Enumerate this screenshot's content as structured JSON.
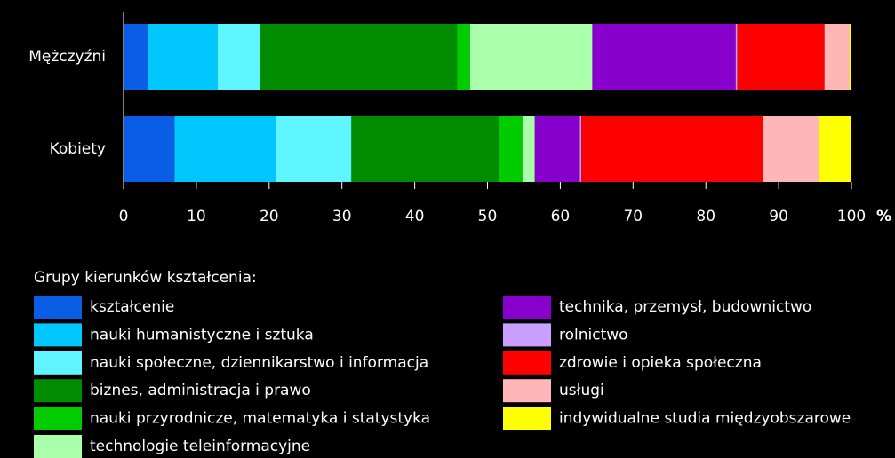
{
  "chart_data": {
    "type": "stacked_barh",
    "categories": [
      "Mężczyźni",
      "Kobiety"
    ],
    "xlabel": "%",
    "legend_title": "Grupy kierunków kształcenia:",
    "xlim": [
      0,
      100
    ],
    "xticks": [
      0,
      10,
      20,
      30,
      40,
      50,
      60,
      70,
      80,
      90,
      100
    ],
    "series": [
      {
        "name": "kształcenie",
        "color": "#0a5ee6",
        "values": [
          3.3,
          7.0
        ]
      },
      {
        "name": "nauki humanistyczne i sztuka",
        "color": "#00c8ff",
        "values": [
          9.6,
          13.9
        ]
      },
      {
        "name": "nauki społeczne, dziennikarstwo i informacja",
        "color": "#5ff5ff",
        "values": [
          5.9,
          10.4
        ]
      },
      {
        "name": "biznes, administracja i prawo",
        "color": "#008c00",
        "values": [
          27.0,
          20.3
        ]
      },
      {
        "name": "nauki przyrodnicze, matematyka i statystyka",
        "color": "#00cc00",
        "values": [
          1.8,
          3.2
        ]
      },
      {
        "name": "technologie teleinformacyjne",
        "color": "#aaffaa",
        "values": [
          16.8,
          1.7
        ]
      },
      {
        "name": "technika, przemysł, budownictwo",
        "color": "#8800cc",
        "values": [
          19.7,
          6.2
        ]
      },
      {
        "name": "rolnictwo",
        "color": "#c9a0ff",
        "values": [
          0.2,
          0.2
        ]
      },
      {
        "name": "zdrowie i opieka społeczna",
        "color": "#ff0000",
        "values": [
          12.0,
          24.9
        ]
      },
      {
        "name": "usługi",
        "color": "#ffb6b6",
        "values": [
          3.4,
          7.8
        ]
      },
      {
        "name": "indywidualne studia międzyobszarowe",
        "color": "#ffff00",
        "values": [
          0.2,
          4.4
        ]
      }
    ]
  }
}
